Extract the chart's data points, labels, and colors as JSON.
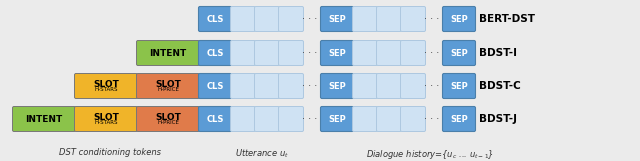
{
  "fig_width": 6.4,
  "fig_height": 1.61,
  "dpi": 100,
  "bg_color": "#ebebeb",
  "colors": {
    "intent": "#8bc34a",
    "slot1": "#f0b429",
    "slot2": "#e07b4a",
    "cls_sep": "#5b9bd5",
    "token": "#cfe2f3",
    "token_edge": "#adc8e0"
  },
  "rows": [
    {
      "label": "BERT-DST",
      "cond": []
    },
    {
      "label": "BDST-I",
      "cond": [
        {
          "main": "INTENT",
          "sub": null,
          "color": "intent"
        }
      ]
    },
    {
      "label": "BDST-C",
      "cond": [
        {
          "main": "SLOT",
          "sub": "H-STARS",
          "color": "slot1"
        },
        {
          "main": "SLOT",
          "sub": "H-PRICE",
          "color": "slot2"
        }
      ]
    },
    {
      "label": "BDST-J",
      "cond": [
        {
          "main": "INTENT",
          "sub": null,
          "color": "intent"
        },
        {
          "main": "SLOT",
          "sub": "H-STARS",
          "color": "slot1"
        },
        {
          "main": "SLOT",
          "sub": "H-PRICE",
          "color": "slot2"
        }
      ]
    }
  ],
  "caption_dst": "DST conditioning tokens",
  "caption_utt": "Utterance u",
  "caption_hist": "Dialogue history={u",
  "caption_hist2": " ... u",
  "caption_hist3": "}",
  "white_bg": "#ffffff"
}
